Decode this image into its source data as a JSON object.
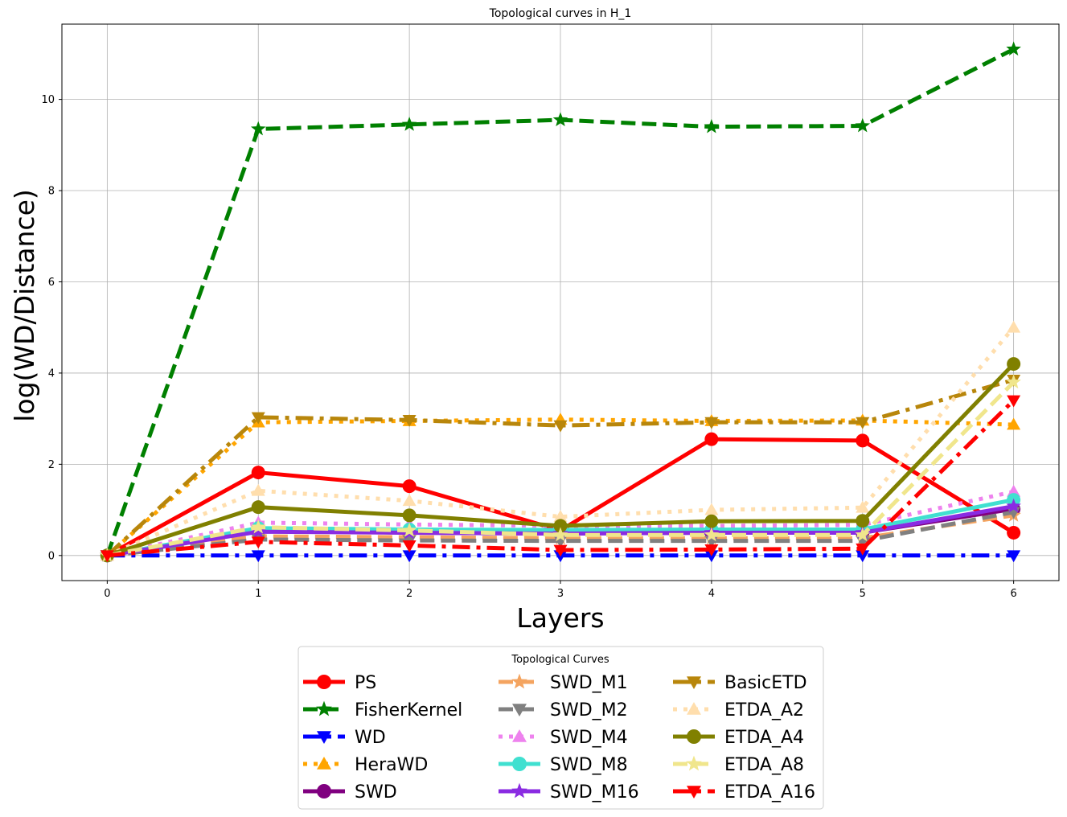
{
  "chart_data": {
    "type": "line",
    "title": "Topological curves in H_1",
    "xlabel": "Layers",
    "ylabel": "log(WD/Distance)",
    "x": [
      0,
      1,
      2,
      3,
      4,
      5,
      6
    ],
    "xlim": [
      -0.3,
      6.3
    ],
    "ylim": [
      -0.55,
      11.65
    ],
    "xticks": [
      0,
      1,
      2,
      3,
      4,
      5,
      6
    ],
    "yticks": [
      0,
      2,
      4,
      6,
      8,
      10
    ],
    "grid": true,
    "legend": {
      "title": "Topological Curves",
      "placement": "bottom-center",
      "columns": 3
    },
    "series": [
      {
        "name": "PS",
        "color": "#ff0000",
        "dash": "solid",
        "marker": "circle",
        "values": [
          0,
          1.82,
          1.52,
          0.55,
          2.55,
          2.52,
          0.5
        ]
      },
      {
        "name": "FisherKernel",
        "color": "#008000",
        "dash": "dashed",
        "marker": "star",
        "values": [
          0,
          9.35,
          9.45,
          9.55,
          9.4,
          9.42,
          11.1
        ]
      },
      {
        "name": "WD",
        "color": "#0000ff",
        "dash": "dashdot",
        "marker": "triangle-down",
        "values": [
          0,
          0,
          0,
          0,
          0,
          0,
          0
        ]
      },
      {
        "name": "HeraWD",
        "color": "#ffa500",
        "dash": "dotted",
        "marker": "triangle-up",
        "values": [
          0,
          2.92,
          2.95,
          2.98,
          2.95,
          2.96,
          2.87
        ]
      },
      {
        "name": "SWD",
        "color": "#800080",
        "dash": "solid",
        "marker": "circle",
        "values": [
          0,
          0.55,
          0.5,
          0.48,
          0.5,
          0.5,
          1.02
        ]
      },
      {
        "name": "SWD_M1",
        "color": "#f4a460",
        "dash": "dashed",
        "marker": "star",
        "values": [
          0,
          0.42,
          0.4,
          0.38,
          0.38,
          0.38,
          0.88
        ]
      },
      {
        "name": "SWD_M2",
        "color": "#808080",
        "dash": "dashed",
        "marker": "triangle-down",
        "values": [
          0,
          0.35,
          0.33,
          0.32,
          0.32,
          0.32,
          0.95
        ]
      },
      {
        "name": "SWD_M4",
        "color": "#ee82ee",
        "dash": "dotted",
        "marker": "triangle-up",
        "values": [
          0,
          0.72,
          0.68,
          0.65,
          0.65,
          0.67,
          1.4
        ]
      },
      {
        "name": "SWD_M8",
        "color": "#40e0d0",
        "dash": "solid",
        "marker": "circle",
        "values": [
          0,
          0.6,
          0.57,
          0.56,
          0.57,
          0.57,
          1.22
        ]
      },
      {
        "name": "SWD_M16",
        "color": "#8a2be2",
        "dash": "solid",
        "marker": "star",
        "values": [
          0,
          0.52,
          0.5,
          0.48,
          0.5,
          0.5,
          1.08
        ]
      },
      {
        "name": "BasicETD",
        "color": "#b8860b",
        "dash": "dashdot",
        "marker": "triangle-down",
        "values": [
          0,
          3.03,
          2.97,
          2.85,
          2.92,
          2.92,
          3.85
        ]
      },
      {
        "name": "ETDA_A2",
        "color": "#ffdead",
        "dash": "dotted",
        "marker": "triangle-up",
        "values": [
          0,
          1.42,
          1.2,
          0.85,
          1.0,
          1.05,
          5.0
        ]
      },
      {
        "name": "ETDA_A4",
        "color": "#808000",
        "dash": "solid",
        "marker": "circle",
        "values": [
          0,
          1.06,
          0.88,
          0.65,
          0.75,
          0.76,
          4.2
        ]
      },
      {
        "name": "ETDA_A8",
        "color": "#f0e68c",
        "dash": "dashed",
        "marker": "star",
        "values": [
          0,
          0.62,
          0.55,
          0.45,
          0.45,
          0.45,
          3.8
        ]
      },
      {
        "name": "ETDA_A16",
        "color": "#ff0000",
        "dash": "dashdot",
        "marker": "triangle-down",
        "values": [
          0,
          0.3,
          0.22,
          0.12,
          0.13,
          0.15,
          3.4
        ]
      }
    ]
  }
}
